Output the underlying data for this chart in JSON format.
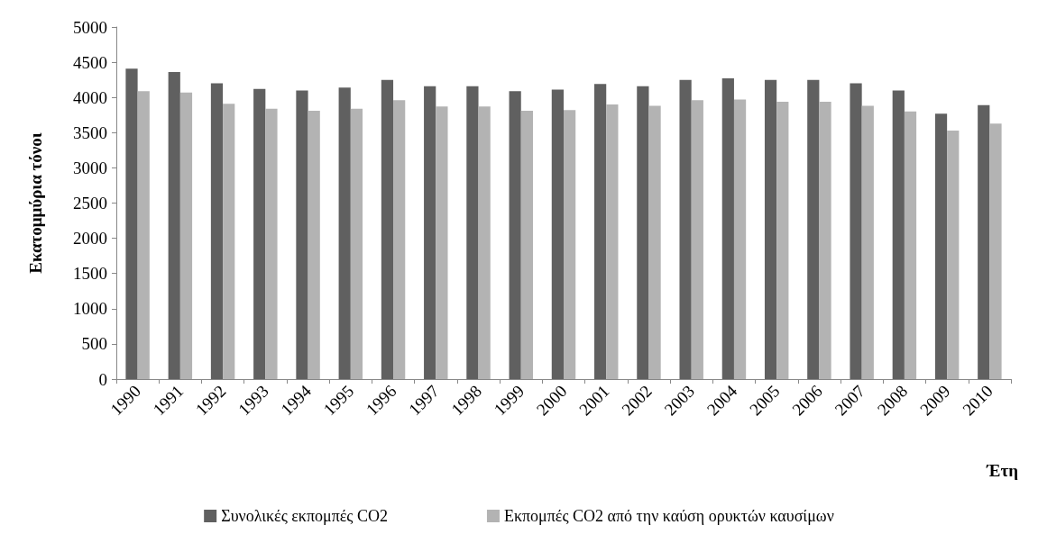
{
  "chart_data": {
    "type": "bar",
    "ylabel": "Εκατομμύρια τόνοι",
    "xlabel": "Έτη",
    "categories": [
      "1990",
      "1991",
      "1992",
      "1993",
      "1994",
      "1995",
      "1996",
      "1997",
      "1998",
      "1999",
      "2000",
      "2001",
      "2002",
      "2003",
      "2004",
      "2005",
      "2006",
      "2007",
      "2008",
      "2009",
      "2010"
    ],
    "series": [
      {
        "name": "Συνολικές εκπομπές CO2",
        "color": "#606060",
        "values": [
          4410,
          4360,
          4200,
          4120,
          4100,
          4140,
          4250,
          4160,
          4160,
          4090,
          4110,
          4190,
          4160,
          4250,
          4270,
          4250,
          4250,
          4200,
          4100,
          3770,
          3890
        ]
      },
      {
        "name": "Εκπομπές CO2 από την καύση ορυκτών καυσίμων",
        "color": "#b3b3b3",
        "values": [
          4090,
          4070,
          3910,
          3840,
          3810,
          3840,
          3960,
          3870,
          3870,
          3810,
          3820,
          3900,
          3880,
          3960,
          3970,
          3940,
          3940,
          3880,
          3800,
          3530,
          3630
        ]
      }
    ],
    "ylim": [
      0,
      5000
    ],
    "yticks": [
      0,
      500,
      1000,
      1500,
      2000,
      2500,
      3000,
      3500,
      4000,
      4500,
      5000
    ],
    "grid": false,
    "legend": "bottom"
  }
}
